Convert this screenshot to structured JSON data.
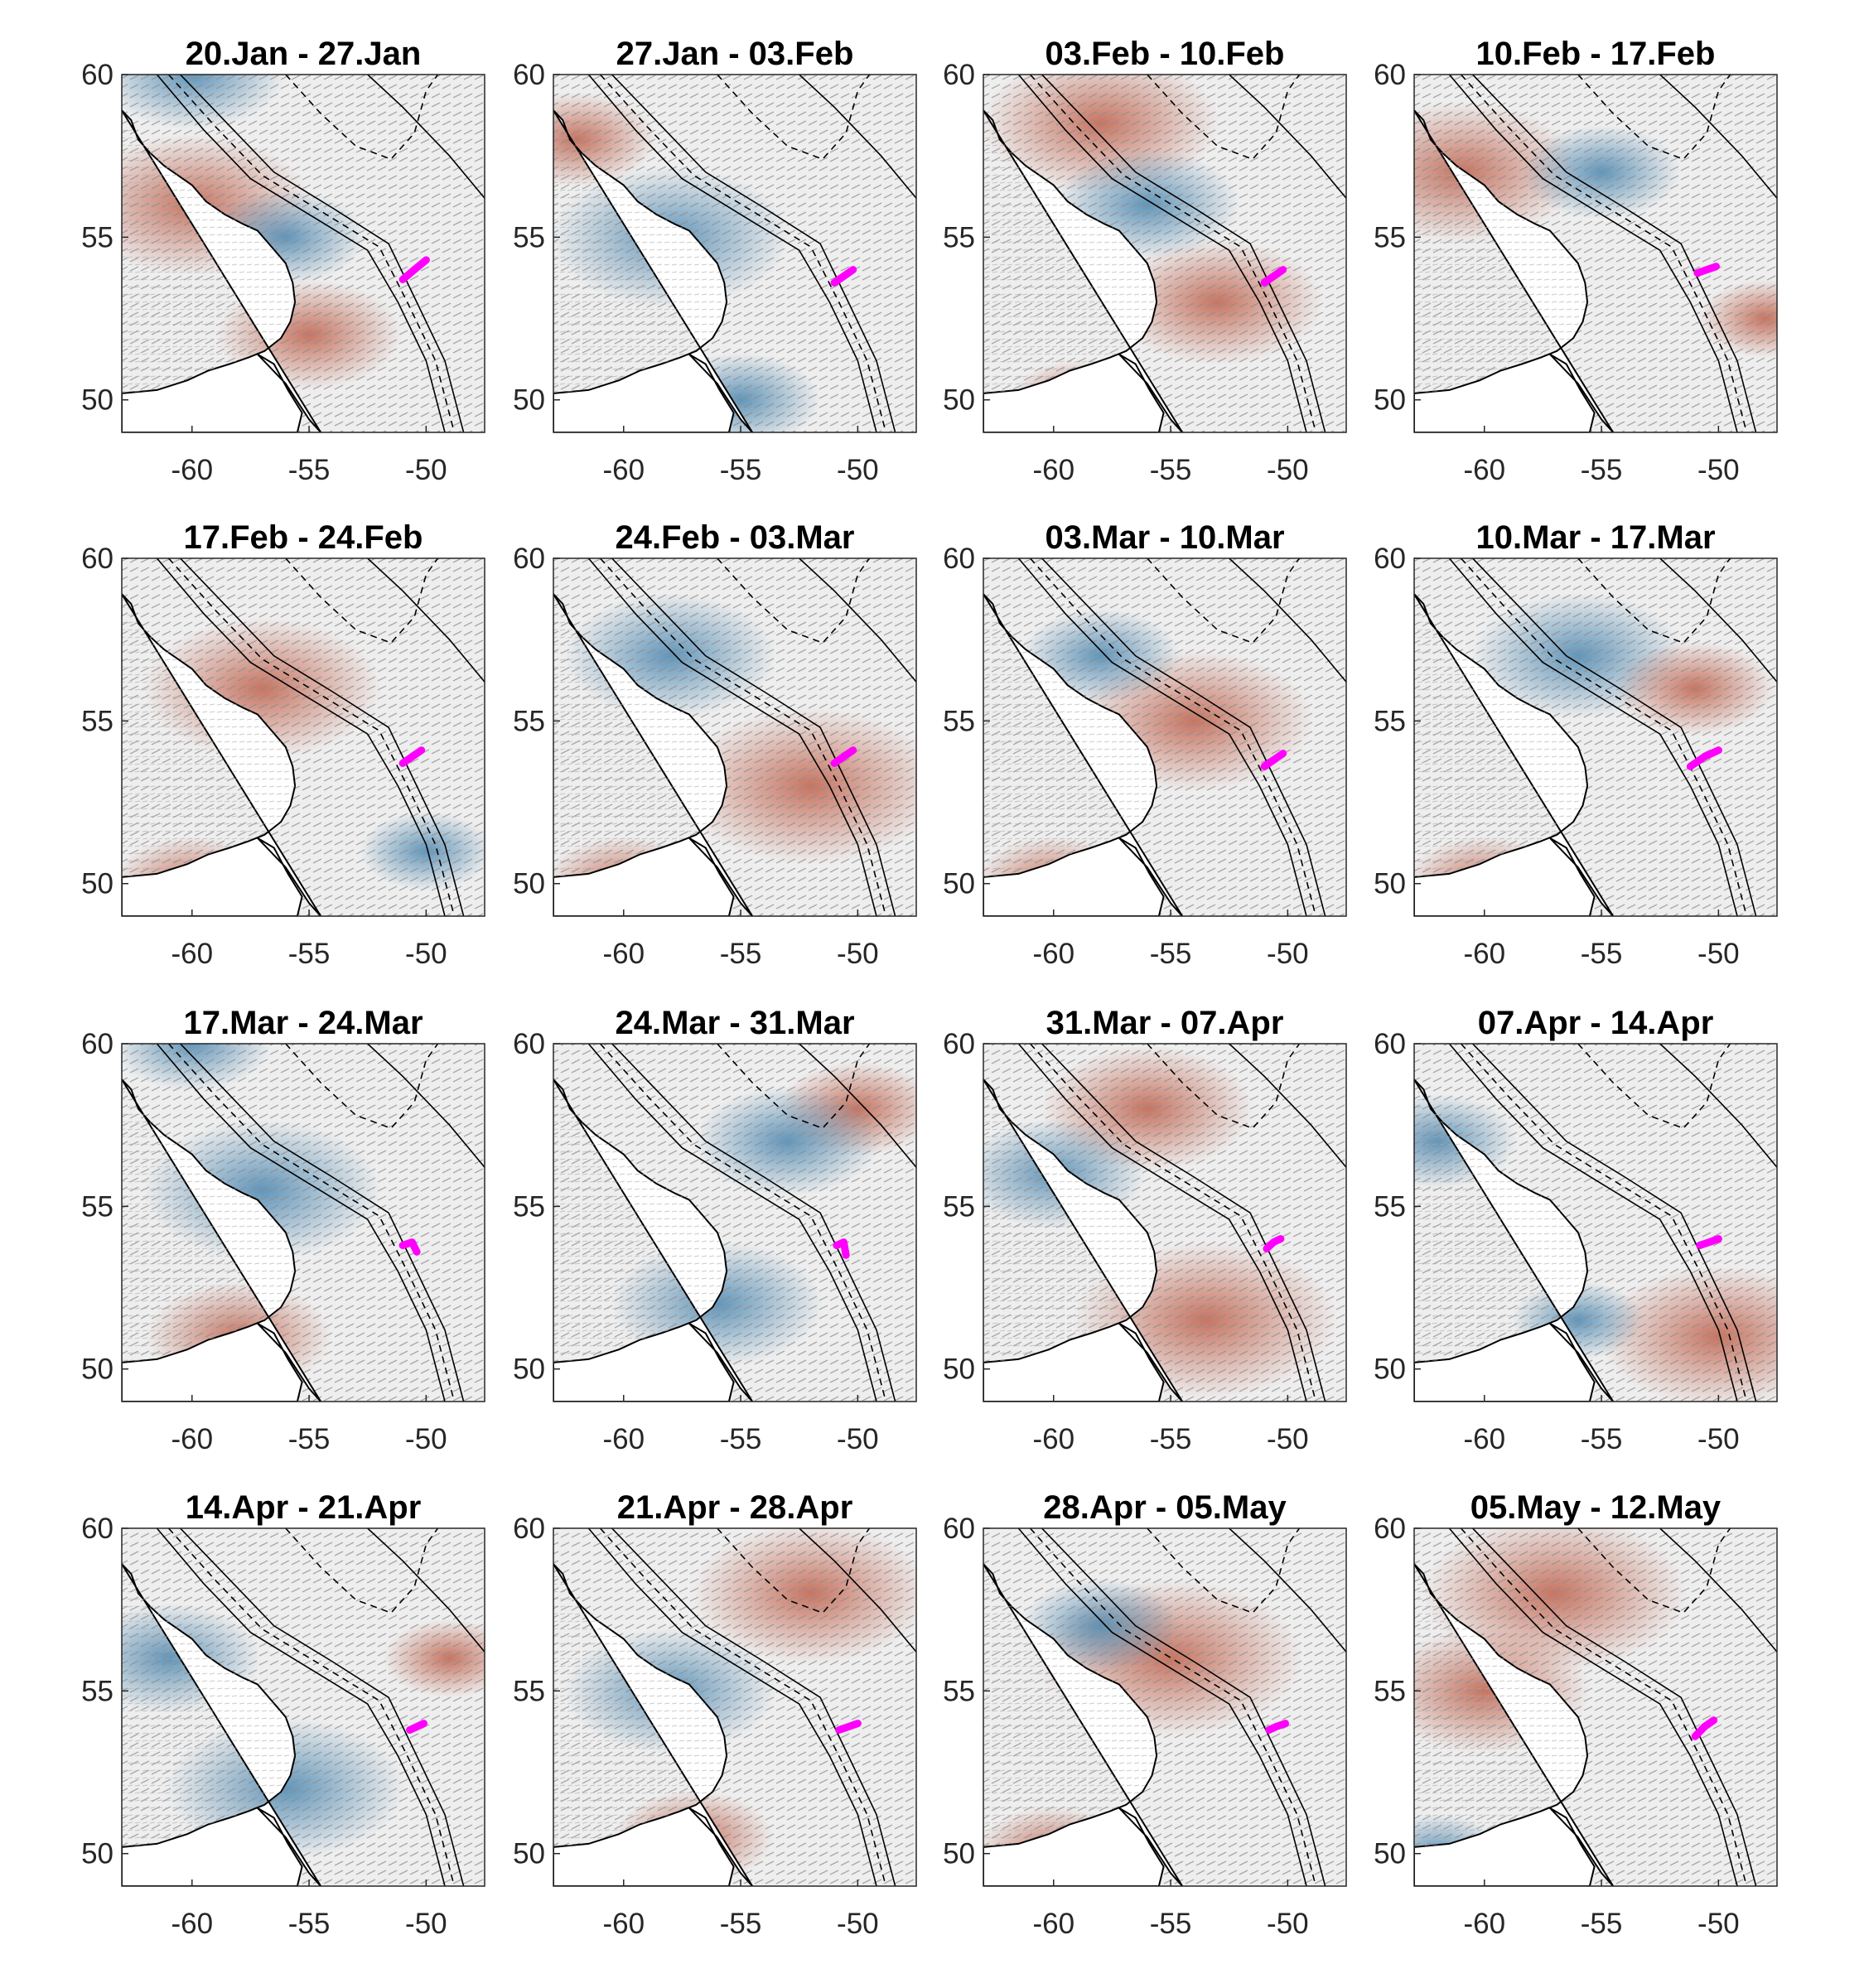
{
  "figure": {
    "x_ticks": [
      -60,
      -55,
      -50
    ],
    "y_ticks": [
      50,
      55,
      60
    ],
    "x_range": [
      -63,
      -47.5
    ],
    "y_range": [
      49,
      60
    ],
    "colors": {
      "warm": "#c0604a",
      "cool": "#4a86b0",
      "neutral": "#eeeeee",
      "vector": "#9a9a9a",
      "contour": "#000000",
      "marker": "#ff00ff"
    }
  },
  "panels": [
    {
      "title": "20.Jan - 27.Jan",
      "marker": {
        "x": [
          -51.0,
          -50.5,
          -50.0
        ],
        "y": [
          53.7,
          54.0,
          54.3
        ]
      },
      "patches": [
        {
          "t": "w",
          "x": -60,
          "y": 56,
          "r": 0.9
        },
        {
          "t": "c",
          "x": -60,
          "y": 60,
          "r": 0.7
        },
        {
          "t": "w",
          "x": -55,
          "y": 52,
          "r": 0.7
        },
        {
          "t": "c",
          "x": -56,
          "y": 55,
          "r": 0.6
        }
      ]
    },
    {
      "title": "27.Jan - 03.Feb",
      "marker": {
        "x": [
          -51.0,
          -50.6,
          -50.2
        ],
        "y": [
          53.6,
          53.8,
          54.0
        ]
      },
      "patches": [
        {
          "t": "w",
          "x": -62,
          "y": 58,
          "r": 0.6
        },
        {
          "t": "c",
          "x": -58,
          "y": 55,
          "r": 0.9
        },
        {
          "t": "c",
          "x": -55,
          "y": 50,
          "r": 0.6
        }
      ]
    },
    {
      "title": "03.Feb - 10.Feb",
      "marker": {
        "x": [
          -51.0,
          -50.6,
          -50.2
        ],
        "y": [
          53.6,
          53.8,
          54.0
        ]
      },
      "patches": [
        {
          "t": "w",
          "x": -58,
          "y": 58.5,
          "r": 0.9
        },
        {
          "t": "w",
          "x": -53,
          "y": 53,
          "r": 0.8
        },
        {
          "t": "c",
          "x": -56,
          "y": 56,
          "r": 0.7
        },
        {
          "t": "w",
          "x": -59,
          "y": 50,
          "r": 0.5
        }
      ]
    },
    {
      "title": "10.Feb - 17.Feb",
      "marker": {
        "x": [
          -50.9,
          -50.5,
          -50.1
        ],
        "y": [
          53.9,
          54.0,
          54.1
        ]
      },
      "patches": [
        {
          "t": "w",
          "x": -61,
          "y": 57,
          "r": 0.9
        },
        {
          "t": "c",
          "x": -55,
          "y": 57,
          "r": 0.6
        },
        {
          "t": "w",
          "x": -48,
          "y": 52.5,
          "r": 0.5
        }
      ]
    },
    {
      "title": "17.Feb - 24.Feb",
      "marker": {
        "x": [
          -51.0,
          -50.6,
          -50.2
        ],
        "y": [
          53.7,
          53.9,
          54.1
        ]
      },
      "patches": [
        {
          "t": "w",
          "x": -57,
          "y": 56,
          "r": 0.9
        },
        {
          "t": "w",
          "x": -60,
          "y": 50,
          "r": 0.6
        },
        {
          "t": "c",
          "x": -50,
          "y": 51,
          "r": 0.5
        }
      ]
    },
    {
      "title": "24.Feb - 03.Mar",
      "marker": {
        "x": [
          -51.0,
          -50.6,
          -50.2
        ],
        "y": [
          53.7,
          53.9,
          54.1
        ]
      },
      "patches": [
        {
          "t": "w",
          "x": -52,
          "y": 53,
          "r": 1.0
        },
        {
          "t": "c",
          "x": -58,
          "y": 57,
          "r": 0.8
        },
        {
          "t": "w",
          "x": -60,
          "y": 50,
          "r": 0.6
        }
      ]
    },
    {
      "title": "03.Mar - 10.Mar",
      "marker": {
        "x": [
          -51.0,
          -50.6,
          -50.2
        ],
        "y": [
          53.6,
          53.8,
          54.0
        ]
      },
      "patches": [
        {
          "t": "w",
          "x": -54,
          "y": 55,
          "r": 0.9
        },
        {
          "t": "w",
          "x": -60,
          "y": 50,
          "r": 0.6
        },
        {
          "t": "c",
          "x": -58,
          "y": 57,
          "r": 0.6
        }
      ]
    },
    {
      "title": "10.Mar - 17.Mar",
      "marker": {
        "x": [
          -51.2,
          -50.6,
          -50.0
        ],
        "y": [
          53.6,
          53.9,
          54.1
        ]
      },
      "patches": [
        {
          "t": "c",
          "x": -56,
          "y": 57,
          "r": 0.8
        },
        {
          "t": "w",
          "x": -51,
          "y": 56,
          "r": 0.6
        },
        {
          "t": "w",
          "x": -60,
          "y": 50,
          "r": 0.6
        }
      ]
    },
    {
      "title": "17.Mar - 24.Mar",
      "marker": {
        "x": [
          -51.0,
          -50.6,
          -50.4
        ],
        "y": [
          53.8,
          53.9,
          53.6
        ]
      },
      "patches": [
        {
          "t": "c",
          "x": -57,
          "y": 55.5,
          "r": 0.9
        },
        {
          "t": "w",
          "x": -58,
          "y": 51,
          "r": 0.7
        },
        {
          "t": "c",
          "x": -60,
          "y": 60,
          "r": 0.6
        }
      ]
    },
    {
      "title": "24.Mar - 31.Mar",
      "marker": {
        "x": [
          -50.9,
          -50.6,
          -50.5
        ],
        "y": [
          53.8,
          53.9,
          53.5
        ]
      },
      "patches": [
        {
          "t": "c",
          "x": -56,
          "y": 52,
          "r": 0.8
        },
        {
          "t": "w",
          "x": -50,
          "y": 58,
          "r": 0.6
        },
        {
          "t": "c",
          "x": -53,
          "y": 57,
          "r": 0.7
        }
      ]
    },
    {
      "title": "31.Mar - 07.Apr",
      "marker": {
        "x": [
          -50.9,
          -50.6,
          -50.3
        ],
        "y": [
          53.7,
          53.9,
          54.0
        ]
      },
      "patches": [
        {
          "t": "w",
          "x": -53.5,
          "y": 51.5,
          "r": 1.0
        },
        {
          "t": "w",
          "x": -56,
          "y": 58,
          "r": 0.8
        },
        {
          "t": "c",
          "x": -60,
          "y": 56,
          "r": 0.7
        }
      ]
    },
    {
      "title": "07.Apr - 14.Apr",
      "marker": {
        "x": [
          -50.8,
          -50.4,
          -50.0
        ],
        "y": [
          53.8,
          53.9,
          54.0
        ]
      },
      "patches": [
        {
          "t": "w",
          "x": -50,
          "y": 51,
          "r": 0.9
        },
        {
          "t": "c",
          "x": -62,
          "y": 57,
          "r": 0.6
        },
        {
          "t": "c",
          "x": -56,
          "y": 51.5,
          "r": 0.5
        }
      ]
    },
    {
      "title": "14.Apr - 21.Apr",
      "marker": {
        "x": [
          -50.7,
          -50.4,
          -50.1
        ],
        "y": [
          53.8,
          53.9,
          54.0
        ]
      },
      "patches": [
        {
          "t": "c",
          "x": -56,
          "y": 52,
          "r": 0.9
        },
        {
          "t": "c",
          "x": -61,
          "y": 56,
          "r": 0.7
        },
        {
          "t": "w",
          "x": -49,
          "y": 56,
          "r": 0.5
        }
      ]
    },
    {
      "title": "21.Apr - 28.Apr",
      "marker": {
        "x": [
          -50.8,
          -50.4,
          -50.0
        ],
        "y": [
          53.8,
          53.9,
          54.0
        ]
      },
      "patches": [
        {
          "t": "w",
          "x": -52,
          "y": 58,
          "r": 0.9
        },
        {
          "t": "c",
          "x": -58,
          "y": 55,
          "r": 0.8
        },
        {
          "t": "w",
          "x": -57,
          "y": 50.5,
          "r": 0.6
        }
      ]
    },
    {
      "title": "28.Apr - 05.May",
      "marker": {
        "x": [
          -50.8,
          -50.5,
          -50.1
        ],
        "y": [
          53.8,
          53.9,
          54.0
        ]
      },
      "patches": [
        {
          "t": "w",
          "x": -55,
          "y": 56,
          "r": 1.0
        },
        {
          "t": "c",
          "x": -58,
          "y": 57,
          "r": 0.6
        },
        {
          "t": "w",
          "x": -60,
          "y": 50,
          "r": 0.6
        }
      ]
    },
    {
      "title": "05.May - 12.May",
      "marker": {
        "x": [
          -51.0,
          -50.6,
          -50.2
        ],
        "y": [
          53.6,
          53.9,
          54.1
        ]
      },
      "patches": [
        {
          "t": "w",
          "x": -57,
          "y": 58,
          "r": 1.0
        },
        {
          "t": "w",
          "x": -60,
          "y": 55,
          "r": 0.8
        },
        {
          "t": "c",
          "x": -62,
          "y": 50,
          "r": 0.5
        }
      ]
    }
  ]
}
